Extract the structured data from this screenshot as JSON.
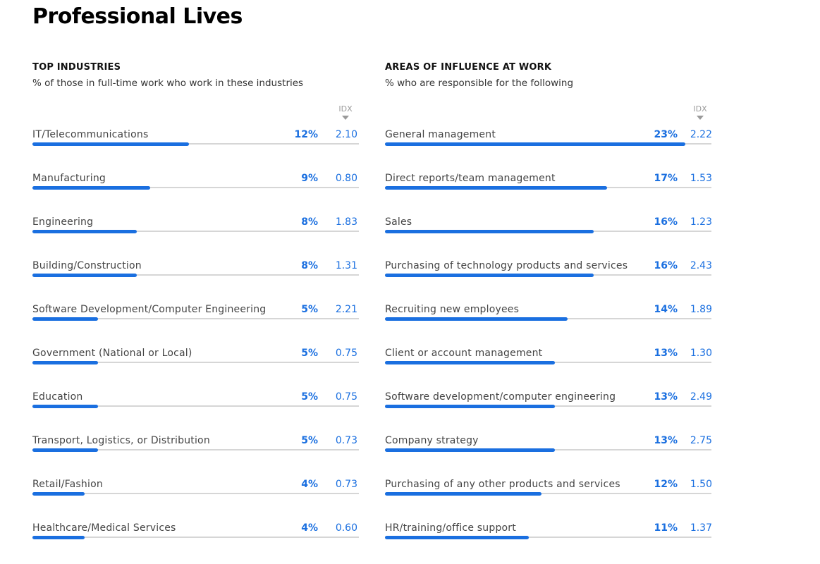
{
  "page": {
    "title": "Professional Lives"
  },
  "chart_data": [
    {
      "type": "bar",
      "title": "TOP INDUSTRIES",
      "subtitle": "% of those in full-time work who work in these industries",
      "idx_label": "IDX",
      "scale_max": 23,
      "categories": [
        "IT/Telecommunications",
        "Manufacturing",
        "Engineering",
        "Building/Construction",
        "Software Development/Computer Engineering",
        "Government (National or Local)",
        "Education",
        "Transport, Logistics, or Distribution",
        "Retail/Fashion",
        "Healthcare/Medical Services"
      ],
      "values": [
        12,
        9,
        8,
        8,
        5,
        5,
        5,
        5,
        4,
        4
      ],
      "value_labels": [
        "12%",
        "9%",
        "8%",
        "8%",
        "5%",
        "5%",
        "5%",
        "5%",
        "4%",
        "4%"
      ],
      "idx": [
        "2.10",
        "0.80",
        "1.83",
        "1.31",
        "2.21",
        "0.75",
        "0.75",
        "0.73",
        "0.73",
        "0.60"
      ],
      "colors": {
        "bar": "#1a6fe0",
        "track": "#d6d6d6"
      }
    },
    {
      "type": "bar",
      "title": "AREAS OF INFLUENCE AT WORK",
      "subtitle": "% who are responsible for the following",
      "idx_label": "IDX",
      "scale_max": 23,
      "categories": [
        "General management",
        "Direct reports/team management",
        "Sales",
        "Purchasing of technology products and services",
        "Recruiting new employees",
        "Client or account management",
        "Software development/computer engineering",
        "Company strategy",
        "Purchasing of any other products and services",
        "HR/training/office support"
      ],
      "values": [
        23,
        17,
        16,
        16,
        14,
        13,
        13,
        13,
        12,
        11
      ],
      "value_labels": [
        "23%",
        "17%",
        "16%",
        "16%",
        "14%",
        "13%",
        "13%",
        "13%",
        "12%",
        "11%"
      ],
      "idx": [
        "2.22",
        "1.53",
        "1.23",
        "2.43",
        "1.89",
        "1.30",
        "2.49",
        "2.75",
        "1.50",
        "1.37"
      ],
      "colors": {
        "bar": "#1a6fe0",
        "track": "#d6d6d6"
      }
    }
  ]
}
